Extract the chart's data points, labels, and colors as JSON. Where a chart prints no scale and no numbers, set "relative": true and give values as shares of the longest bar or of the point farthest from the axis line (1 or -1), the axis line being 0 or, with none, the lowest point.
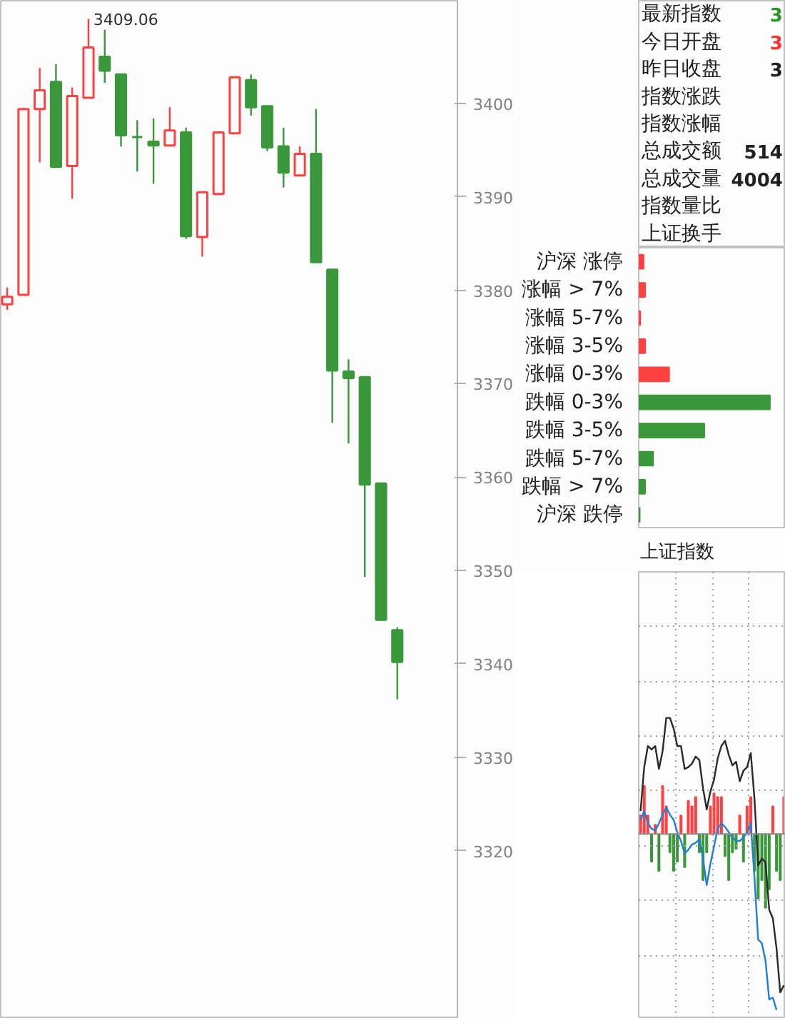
{
  "chart_data": [
    {
      "type": "candlestick",
      "categories": [
        null,
        null,
        null,
        null,
        null,
        null,
        null,
        null,
        null,
        null,
        null,
        null,
        null,
        null,
        null,
        null,
        null,
        null,
        null,
        null,
        null,
        null,
        null,
        null,
        null
      ],
      "ohlc": [
        [
          3378.5,
          3380.3,
          3377.9,
          3379.3
        ],
        [
          3379.5,
          3399.4,
          3379.5,
          3399.4
        ],
        [
          3399.4,
          3403.8,
          3393.7,
          3401.4
        ],
        [
          3402.3,
          3404.2,
          3393.2,
          3393.2
        ],
        [
          3393.3,
          3401.7,
          3389.8,
          3400.8
        ],
        [
          3400.6,
          3409.06,
          3400.6,
          3406.0
        ],
        [
          3405.0,
          3407.9,
          3402.2,
          3403.5
        ],
        [
          3403.1,
          3403.1,
          3395.4,
          3396.6
        ],
        [
          3396.4,
          3398.2,
          3392.7,
          3396.4
        ],
        [
          3395.9,
          3398.4,
          3391.4,
          3395.5
        ],
        [
          3395.5,
          3399.6,
          3395.4,
          3397.1
        ],
        [
          3396.9,
          3397.4,
          3385.5,
          3385.8
        ],
        [
          3385.7,
          3390.5,
          3383.6,
          3390.5
        ],
        [
          3390.3,
          3396.9,
          3390.3,
          3396.9
        ],
        [
          3396.8,
          3402.8,
          3396.8,
          3402.8
        ],
        [
          3402.5,
          3403.1,
          3398.7,
          3399.6
        ],
        [
          3399.7,
          3399.7,
          3394.9,
          3395.3
        ],
        [
          3395.4,
          3397.4,
          3391.0,
          3392.6
        ],
        [
          3392.3,
          3395.4,
          3392.3,
          3394.6
        ],
        [
          3394.6,
          3399.4,
          3383.0,
          3383.0
        ],
        [
          3382.2,
          3382.2,
          3365.8,
          3371.4
        ],
        [
          3371.3,
          3372.6,
          3363.6,
          3370.6
        ],
        [
          3370.7,
          3370.7,
          3349.3,
          3359.2
        ],
        [
          3359.3,
          3359.4,
          3344.7,
          3344.7
        ],
        [
          3343.6,
          3343.9,
          3336.2,
          3340.2
        ]
      ],
      "colors": [
        "#ff4040",
        "#ff4040",
        "#ff4040",
        "#3a983a",
        "#ff4040",
        "#ff4040",
        "#3a983a",
        "#3a983a",
        "#3a983a",
        "#3a983a",
        "#ff4040",
        "#3a983a",
        "#ff4040",
        "#ff4040",
        "#ff4040",
        "#3a983a",
        "#3a983a",
        "#3a983a",
        "#ff4040",
        "#3a983a",
        "#3a983a",
        "#3a983a",
        "#3a983a",
        "#3a983a",
        "#3a983a"
      ],
      "ylim": [
        3302,
        3411
      ],
      "yticks": [
        3320,
        3330,
        3340,
        3350,
        3360,
        3370,
        3380,
        3390,
        3400
      ],
      "tick_labels": "y",
      "annotations": [
        "3409.06"
      ]
    },
    {
      "type": "other",
      "categories": [
        "最新指数",
        "今日开盘",
        "昨日收盘",
        "指数涨跌",
        "指数涨幅",
        "总成交额",
        "总成交量",
        "指数量比",
        "上证换手"
      ],
      "value_labels": [
        "3",
        "3",
        "3",
        null,
        null,
        "514",
        "4004",
        null,
        null
      ],
      "colors": [
        "#2a962a",
        "#ff3030",
        "#202020",
        null,
        null,
        "#202020",
        "#202020",
        null,
        null
      ]
    },
    {
      "type": "bar",
      "orientation": "horizontal",
      "relative": true,
      "categories": [
        "沪深 涨停",
        "涨幅 > 7%",
        "涨幅 5-7%",
        "涨幅 3-5%",
        "涨幅 0-3%",
        "跌幅 0-3%",
        "跌幅 3-5%",
        "跌幅 5-7%",
        "跌幅 > 7%",
        "沪深 跌停"
      ],
      "values": [
        0.037,
        0.049,
        0.012,
        0.049,
        0.232,
        1,
        0.5,
        0.11,
        0.049,
        0.008
      ],
      "colors": [
        "#ff4040",
        "#ff4040",
        "#ff4040",
        "#ff4040",
        "#ff4040",
        "#3a983a",
        "#3a983a",
        "#3a983a",
        "#3a983a",
        "#3a983a"
      ]
    },
    {
      "type": "line",
      "title": "上证指数",
      "relative": true,
      "grid": true,
      "categories": [
        null,
        null,
        null,
        null,
        null,
        null,
        null,
        null,
        null,
        null,
        null,
        null,
        null,
        null,
        null,
        null,
        null,
        null,
        null,
        null,
        null,
        null,
        null,
        null,
        null,
        null,
        null,
        null,
        null,
        null,
        null,
        null,
        null,
        null,
        null,
        null,
        null,
        null,
        null,
        null
      ],
      "series": [
        {
          "color": "#2a2a2a",
          "values": [
            0.13,
            0.38,
            0.5,
            0.48,
            0.5,
            0.37,
            0.47,
            0.66,
            0.66,
            0.6,
            0.5,
            0.5,
            0.37,
            0.38,
            0.4,
            0.44,
            0.42,
            0.26,
            0.14,
            0.24,
            0.31,
            0.43,
            0.5,
            0.53,
            0.45,
            0.39,
            0.41,
            0.3,
            0.36,
            0.38,
            0.46,
            0.2,
            -0.18,
            -0.14,
            -0.16,
            -0.43,
            -0.48,
            -0.65,
            -0.9,
            -0.86
          ]
        },
        {
          "color": "#1f7fd8",
          "values": [
            0.08,
            0.13,
            0.06,
            0.03,
            0.02,
            0.06,
            0.11,
            0.15,
            0.11,
            0.08,
            0.01,
            -0.04,
            -0.11,
            -0.09,
            -0.06,
            -0.05,
            -0.03,
            -0.14,
            -0.29,
            -0.17,
            -0.07,
            0.03,
            0.06,
            0.04,
            0.01,
            -0.02,
            -0.04,
            -0.04,
            -0.02,
            0.01,
            0.06,
            -0.25,
            -0.6,
            -0.62,
            -0.72,
            -0.94,
            -0.93,
            -1,
            null,
            null
          ]
        }
      ]
    },
    {
      "type": "bar",
      "relative": true,
      "categories": [
        null,
        null,
        null,
        null,
        null,
        null,
        null,
        null,
        null,
        null,
        null,
        null,
        null,
        null,
        null,
        null,
        null,
        null,
        null,
        null,
        null,
        null,
        null,
        null,
        null,
        null,
        null,
        null,
        null,
        null,
        null,
        null,
        null,
        null,
        null,
        null,
        null,
        null,
        null,
        null
      ],
      "values": [
        0.25,
        0.65,
        0.25,
        -0.375,
        0.125,
        -0.5,
        0.65,
        0.375,
        -0.25,
        -0.5,
        -0.375,
        0.25,
        -0.45,
        0.45,
        0.375,
        0.5,
        -0.25,
        -0.625,
        -0.25,
        0.375,
        0.55,
        0.5,
        0.5,
        -0.3,
        -0.625,
        -0.25,
        -0.2,
        0.25,
        -0.375,
        0.375,
        0.5,
        -0.5,
        -0.875,
        -0.625,
        -1,
        -0.75,
        0.375,
        -0.5,
        -0.625,
        0.5
      ],
      "colors": [
        "#ff4040",
        "#ff4040",
        "#ff4040",
        "#3a983a",
        "#ff4040",
        "#3a983a",
        "#ff4040",
        "#ff4040",
        "#3a983a",
        "#3a983a",
        "#3a983a",
        "#ff4040",
        "#3a983a",
        "#ff4040",
        "#ff4040",
        "#ff4040",
        "#3a983a",
        "#3a983a",
        "#3a983a",
        "#ff4040",
        "#ff4040",
        "#ff4040",
        "#ff4040",
        "#3a983a",
        "#3a983a",
        "#3a983a",
        "#3a983a",
        "#ff4040",
        "#3a983a",
        "#ff4040",
        "#ff4040",
        "#3a983a",
        "#3a983a",
        "#3a983a",
        "#3a983a",
        "#3a983a",
        "#ff4040",
        "#3a983a",
        "#3a983a",
        "#ff4040"
      ]
    }
  ]
}
